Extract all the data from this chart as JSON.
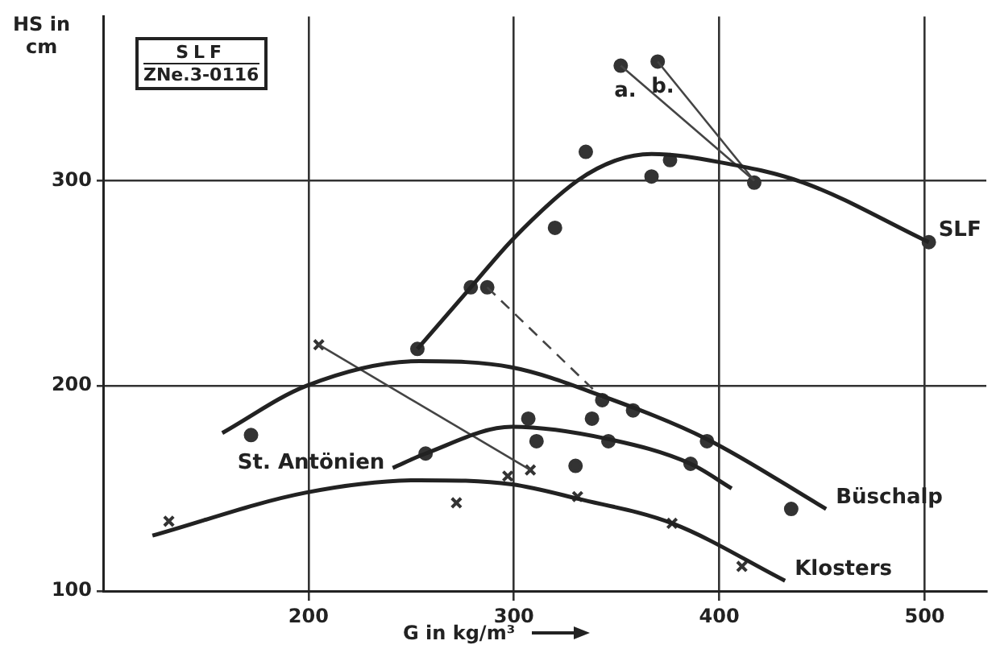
{
  "chart_data": {
    "type": "line",
    "xlabel": "G in kg/m³",
    "ylabel": "HS in cm",
    "xlim": [
      100,
      530
    ],
    "ylim": [
      100,
      380
    ],
    "xticks": [
      200,
      300,
      400,
      500
    ],
    "yticks": [
      100,
      200,
      300
    ],
    "grid": true,
    "legend": false,
    "annotations": [
      "SLF",
      "ZNe.3-0116"
    ],
    "series": [
      {
        "name": "SLF",
        "color": "#222222",
        "marker": "none",
        "x": [
          253,
          279,
          300,
          331,
          350,
          367,
          400,
          441,
          502
        ],
        "values": [
          218,
          248,
          272,
          300,
          310,
          313,
          309,
          299,
          270
        ]
      },
      {
        "name": "Büschalp",
        "color": "#222222",
        "marker": "none",
        "x": [
          158,
          199,
          254,
          299,
          343,
          394,
          452
        ],
        "values": [
          177,
          200,
          212,
          209,
          195,
          174,
          140
        ]
      },
      {
        "name": "St. Antönien",
        "color": "#222222",
        "marker": "none",
        "x": [
          241,
          257,
          299,
          346,
          386,
          406
        ],
        "values": [
          160,
          167,
          180,
          174,
          162,
          150
        ]
      },
      {
        "name": "Klosters",
        "color": "#222222",
        "marker": "none",
        "x": [
          124,
          199,
          254,
          299,
          331,
          377,
          432
        ],
        "values": [
          127,
          148,
          154,
          152,
          145,
          133,
          105
        ]
      },
      {
        "name": "a.",
        "color": "#444444",
        "marker": "none",
        "x": [
          352,
          417
        ],
        "values": [
          356,
          300
        ]
      },
      {
        "name": "b.",
        "color": "#444444",
        "marker": "none",
        "x": [
          370,
          417
        ],
        "values": [
          358,
          300
        ]
      },
      {
        "color": "#444444",
        "marker": "none",
        "x": [
          205,
          308
        ],
        "values": [
          220,
          159
        ]
      },
      {
        "color": "#444444",
        "marker": "none",
        "line_style": "dashed",
        "x": [
          287,
          343
        ],
        "values": [
          248,
          194
        ]
      },
      {
        "type": "scatter",
        "color": "#333333",
        "marker": "circle",
        "x": [
          253,
          279,
          287,
          320,
          335,
          352,
          367,
          370,
          376,
          417,
          502
        ],
        "values": [
          218,
          248,
          248,
          277,
          314,
          356,
          302,
          358,
          310,
          299,
          270
        ]
      },
      {
        "type": "scatter",
        "color": "#333333",
        "marker": "circle",
        "x": [
          172,
          338,
          343,
          358,
          394,
          435
        ],
        "values": [
          176,
          184,
          193,
          188,
          173,
          140
        ]
      },
      {
        "type": "scatter",
        "color": "#333333",
        "marker": "circle",
        "x": [
          257,
          307,
          311,
          330,
          346,
          386
        ],
        "values": [
          167,
          184,
          173,
          161,
          173,
          162
        ]
      },
      {
        "type": "scatter",
        "color": "#333333",
        "marker": "cross",
        "x": [
          132,
          205,
          272,
          297,
          308,
          331,
          377,
          411
        ],
        "values": [
          134,
          220,
          143,
          156,
          159,
          146,
          133,
          112
        ]
      }
    ]
  }
}
